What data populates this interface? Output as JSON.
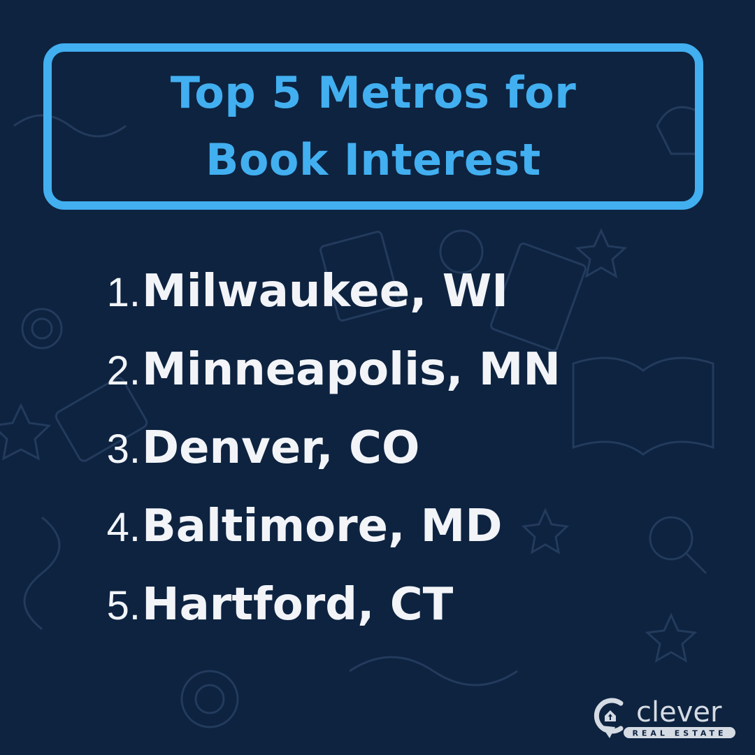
{
  "title": {
    "line1": "Top 5 Metros for",
    "line2": "Book Interest"
  },
  "metros": [
    {
      "rank": "1.",
      "name": "Milwaukee, WI"
    },
    {
      "rank": "2.",
      "name": "Minneapolis, MN"
    },
    {
      "rank": "3.",
      "name": "Denver, CO"
    },
    {
      "rank": "4.",
      "name": "Baltimore, MD"
    },
    {
      "rank": "5.",
      "name": "Hartford, CT"
    }
  ],
  "logo": {
    "word": "clever",
    "tagline": "REAL ESTATE"
  },
  "colors": {
    "background": "#0d2340",
    "accent": "#42aff0",
    "text": "#f2f4f8"
  }
}
